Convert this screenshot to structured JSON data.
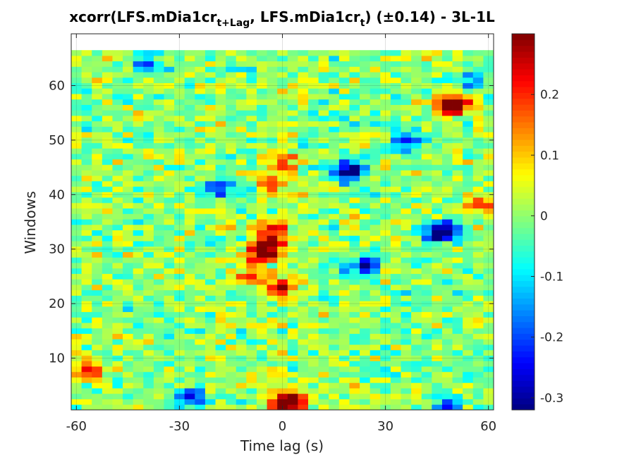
{
  "chart_data": {
    "type": "heatmap",
    "title": {
      "part1": "xcorr(LFS.mDia1cr",
      "sub1": "t+Lag",
      "part2": ", LFS.mDia1cr",
      "sub2": "t",
      "part3": ")  (±0.14) - 3L-1L"
    },
    "xlabel": "Time lag (s)",
    "ylabel": "Windows",
    "xlim": [
      -61.5,
      61.5
    ],
    "ylim": [
      0.5,
      69.5
    ],
    "x_tick_values": [
      -60,
      -30,
      0,
      30,
      60
    ],
    "x_tick_labels": [
      "-60",
      "-30",
      "0",
      "30",
      "60"
    ],
    "y_tick_values": [
      10,
      20,
      30,
      40,
      50,
      60
    ],
    "y_tick_labels": [
      "10",
      "20",
      "30",
      "40",
      "50",
      "60"
    ],
    "colorbar": {
      "colormap": "jet",
      "clim": [
        -0.32,
        0.3
      ],
      "tick_values": [
        -0.3,
        -0.2,
        -0.1,
        0,
        0.1,
        0.2
      ],
      "tick_labels": [
        "-0.3",
        "-0.2",
        "-0.1",
        "0",
        "0.1",
        "0.2"
      ]
    },
    "grid": true,
    "lag_step_s": 3,
    "windows": 66,
    "hotspots": [
      {
        "x": 3,
        "y": 2,
        "v": 0.26
      },
      {
        "x": 0,
        "y": 2,
        "v": 0.22
      },
      {
        "x": -6,
        "y": 29,
        "v": 0.27
      },
      {
        "x": -3,
        "y": 31,
        "v": 0.24
      },
      {
        "x": -3,
        "y": 34,
        "v": 0.22
      },
      {
        "x": 0,
        "y": 23,
        "v": 0.25
      },
      {
        "x": -9,
        "y": 25,
        "v": 0.2
      },
      {
        "x": 0,
        "y": 46,
        "v": 0.2
      },
      {
        "x": -3,
        "y": 42,
        "v": 0.18
      },
      {
        "x": 51,
        "y": 57,
        "v": 0.24
      },
      {
        "x": 48,
        "y": 56,
        "v": 0.2
      },
      {
        "x": 57,
        "y": 38,
        "v": 0.18
      },
      {
        "x": -57,
        "y": 8,
        "v": 0.2
      },
      {
        "x": 24,
        "y": 27,
        "v": -0.25
      },
      {
        "x": 18,
        "y": 44,
        "v": -0.22
      },
      {
        "x": 21,
        "y": 45,
        "v": -0.2
      },
      {
        "x": 45,
        "y": 33,
        "v": -0.24
      },
      {
        "x": 48,
        "y": 33,
        "v": -0.22
      },
      {
        "x": 48,
        "y": 1,
        "v": -0.25
      },
      {
        "x": -27,
        "y": 3,
        "v": -0.22
      },
      {
        "x": -39,
        "y": 64,
        "v": -0.2
      },
      {
        "x": 36,
        "y": 50,
        "v": -0.2
      },
      {
        "x": 54,
        "y": 61,
        "v": -0.18
      },
      {
        "x": -18,
        "y": 41,
        "v": -0.15
      }
    ]
  }
}
